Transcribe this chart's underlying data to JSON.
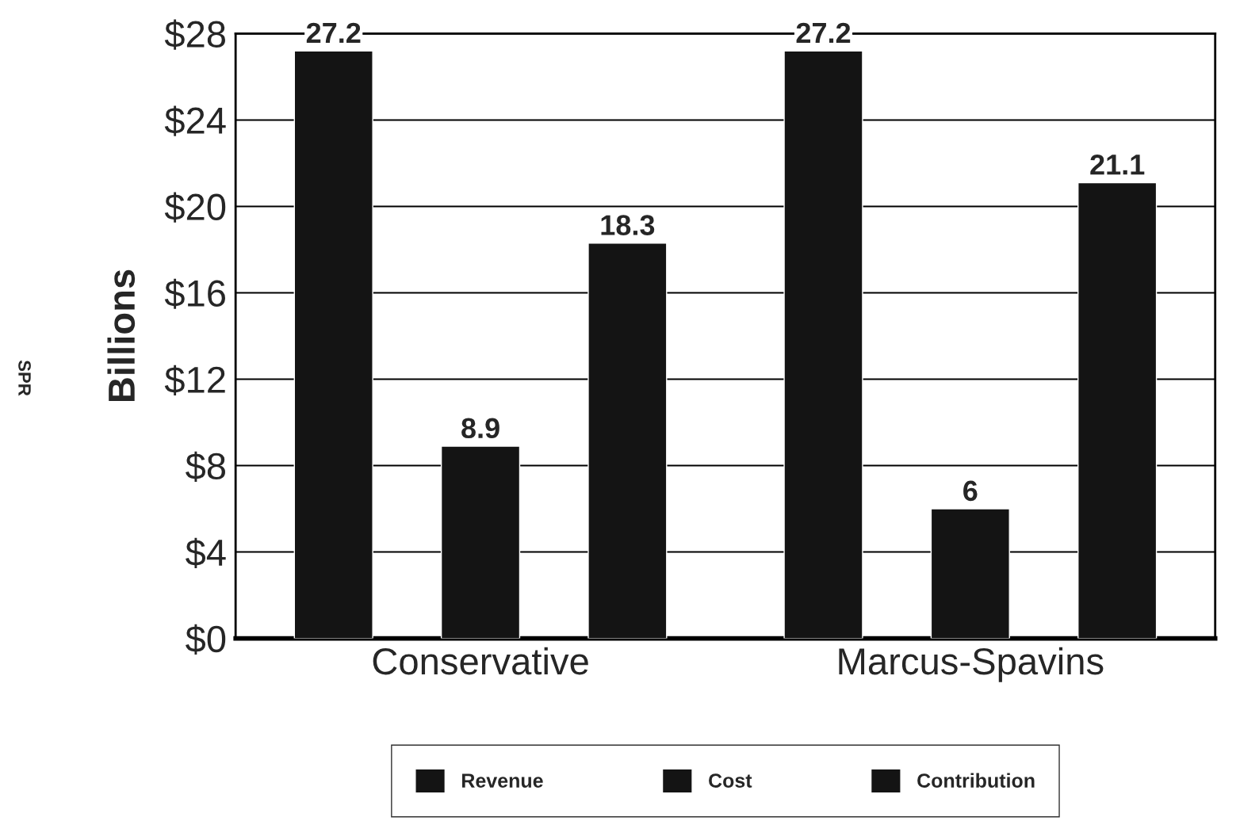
{
  "chart_data": {
    "type": "bar",
    "ylabel": "Billions",
    "categories": [
      "Conservative",
      "Marcus-Spavins"
    ],
    "series": [
      {
        "name": "Revenue",
        "color": "#141414",
        "values": [
          27.2,
          27.2
        ]
      },
      {
        "name": "Cost",
        "color": "#141414",
        "values": [
          8.9,
          6
        ]
      },
      {
        "name": "Contribution",
        "color": "#141414",
        "values": [
          18.3,
          21.1
        ]
      }
    ],
    "ylim": [
      0,
      28
    ],
    "yticks": [
      {
        "value": 0,
        "label": "$0"
      },
      {
        "value": 4,
        "label": "$4"
      },
      {
        "value": 8,
        "label": "$8"
      },
      {
        "value": 12,
        "label": "$12"
      },
      {
        "value": 16,
        "label": "$16"
      },
      {
        "value": 20,
        "label": "$20"
      },
      {
        "value": 24,
        "label": "$24"
      },
      {
        "value": 28,
        "label": "$28"
      }
    ],
    "data_labels": true,
    "grid": "y",
    "legend": "bottom",
    "annotations": [
      "SPR"
    ]
  }
}
